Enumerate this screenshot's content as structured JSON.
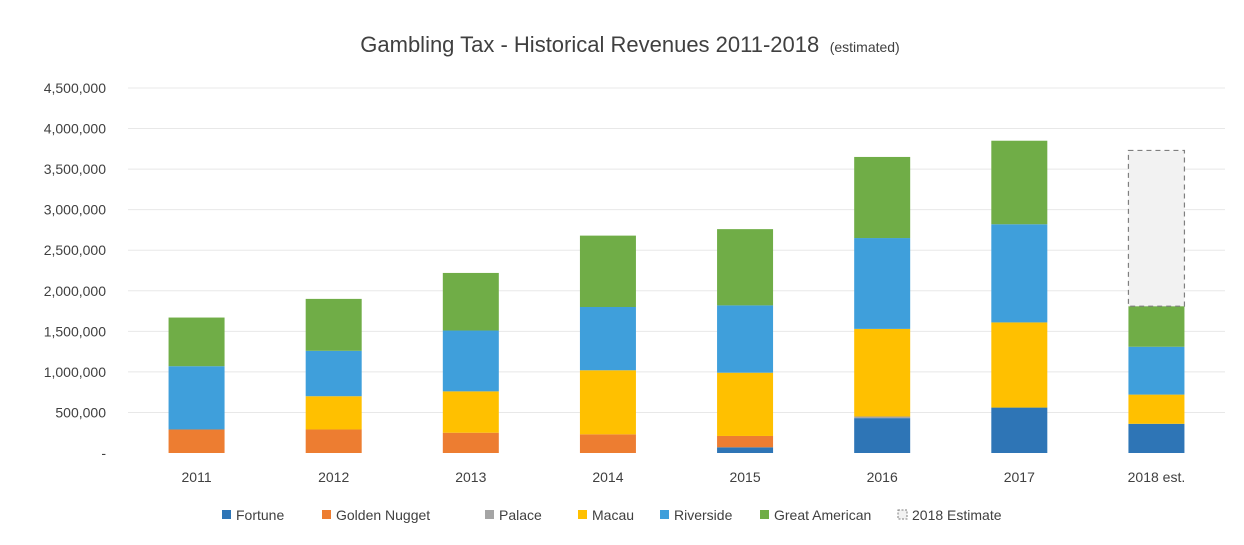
{
  "chart_data": {
    "type": "bar",
    "stacked": true,
    "title": "Gambling Tax - Historical Revenues 2011-2018",
    "subtitle": "(estimated)",
    "xlabel": "",
    "ylabel": "",
    "ylim": [
      0,
      4500000
    ],
    "yticks": [
      {
        "value": 0,
        "label": "-"
      },
      {
        "value": 500000,
        "label": "500,000"
      },
      {
        "value": 1000000,
        "label": "1,000,000"
      },
      {
        "value": 1500000,
        "label": "1,500,000"
      },
      {
        "value": 2000000,
        "label": "2,000,000"
      },
      {
        "value": 2500000,
        "label": "2,500,000"
      },
      {
        "value": 3000000,
        "label": "3,000,000"
      },
      {
        "value": 3500000,
        "label": "3,500,000"
      },
      {
        "value": 4000000,
        "label": "4,000,000"
      },
      {
        "value": 4500000,
        "label": "4,500,000"
      }
    ],
    "grid": true,
    "legend_position": "bottom",
    "categories": [
      "2011",
      "2012",
      "2013",
      "2014",
      "2015",
      "2016",
      "2017",
      "2018 est."
    ],
    "series": [
      {
        "name": "Fortune",
        "color": "#2e75b6",
        "values": [
          0,
          0,
          0,
          0,
          70000,
          430000,
          560000,
          360000
        ]
      },
      {
        "name": "Golden Nugget",
        "color": "#ed7d31",
        "values": [
          290000,
          290000,
          250000,
          230000,
          140000,
          0,
          0,
          0
        ]
      },
      {
        "name": "Palace",
        "color": "#a5a5a5",
        "values": [
          0,
          0,
          0,
          0,
          0,
          20000,
          0,
          0
        ]
      },
      {
        "name": "Macau",
        "color": "#ffc000",
        "values": [
          0,
          410000,
          510000,
          790000,
          780000,
          1080000,
          1050000,
          360000
        ]
      },
      {
        "name": "Riverside",
        "color": "#3f9fdb",
        "values": [
          780000,
          560000,
          750000,
          780000,
          830000,
          1120000,
          1210000,
          590000
        ]
      },
      {
        "name": "Great American",
        "color": "#70ad47",
        "values": [
          600000,
          640000,
          710000,
          880000,
          940000,
          1000000,
          1030000,
          500000
        ]
      },
      {
        "name": "2018 Estimate",
        "color": "#f2f2f2",
        "border": "dashed",
        "values": [
          0,
          0,
          0,
          0,
          0,
          0,
          0,
          1920000
        ]
      }
    ]
  }
}
